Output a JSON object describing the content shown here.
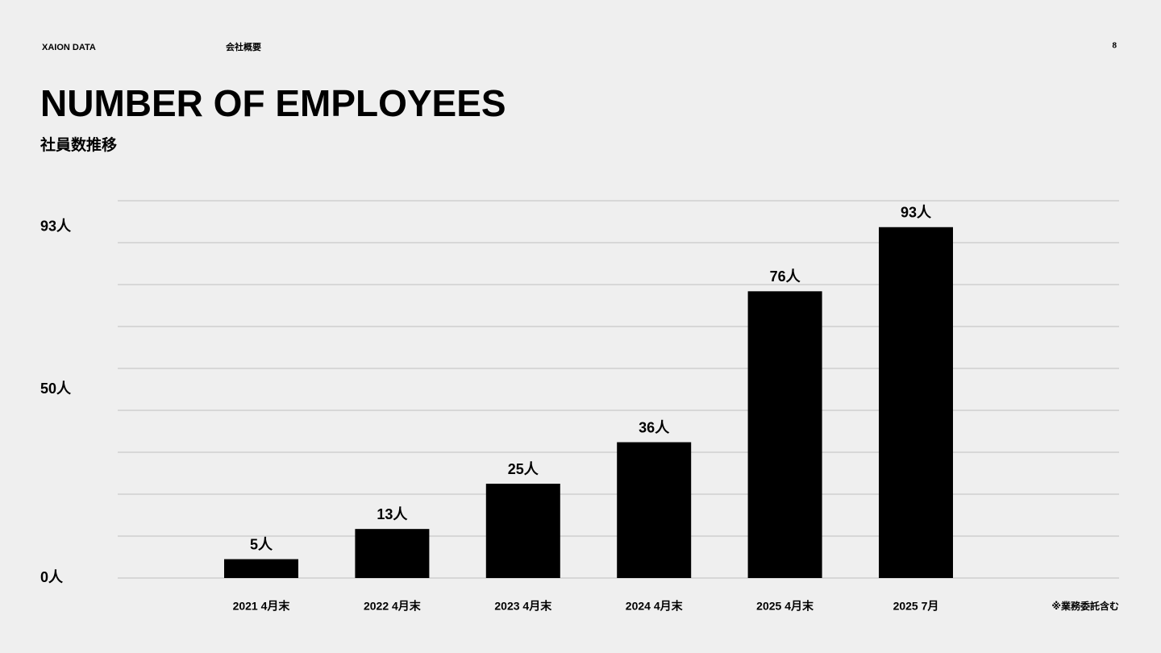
{
  "header": {
    "brand": "XAION DATA",
    "section": "会社概要",
    "page": "8"
  },
  "chart_data": {
    "type": "bar",
    "title": "NUMBER OF EMPLOYEES",
    "subtitle": "社員数推移",
    "categories": [
      "2021 4月末",
      "2022 4月末",
      "2023 4月末",
      "2024 4月末",
      "2025 4月末",
      "2025 7月"
    ],
    "values": [
      5,
      13,
      25,
      36,
      76,
      93
    ],
    "value_labels": [
      "5人",
      "13人",
      "25人",
      "36人",
      "76人",
      "93人"
    ],
    "color": "#000000",
    "ylim": [
      0,
      100
    ],
    "yticks": [
      {
        "value": 0,
        "label": "0人"
      },
      {
        "value": 50,
        "label": "50人"
      },
      {
        "value": 93,
        "label": "93人"
      }
    ],
    "note": "※業務委託含む"
  }
}
